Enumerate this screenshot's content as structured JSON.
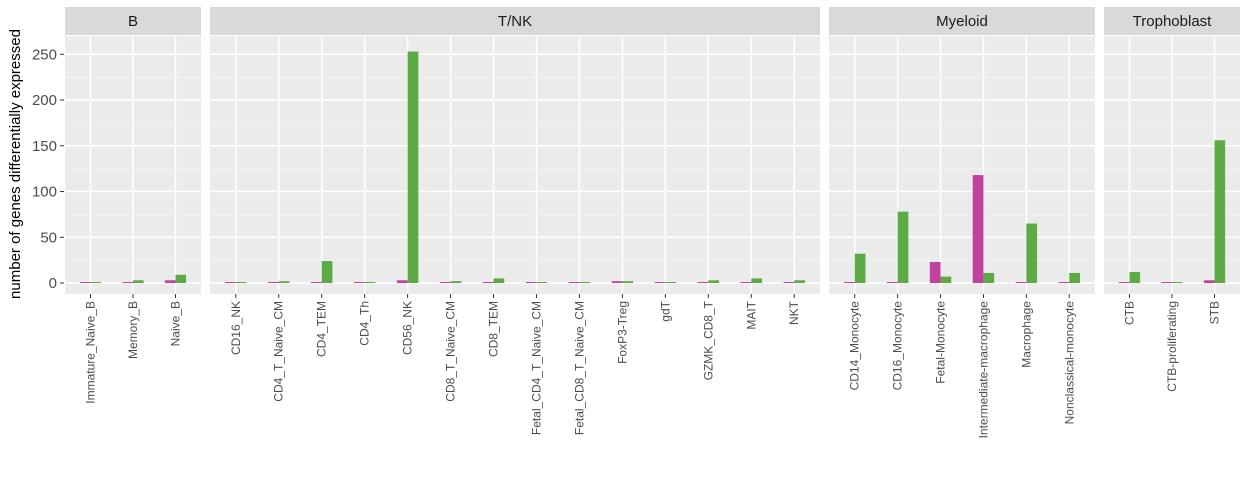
{
  "chart_data": {
    "type": "bar",
    "ylabel": "number of genes differentially expressed",
    "ylim": [
      -12,
      270
    ],
    "yticks": [
      0,
      50,
      100,
      150,
      200,
      250
    ],
    "grid": true,
    "colors": {
      "series_1": "#C2429F",
      "series_2": "#5CAB45",
      "panel_bg": "#EBEBEB",
      "strip_bg": "#D9D9D9",
      "grid": "#FFFFFF"
    },
    "facets": [
      {
        "title": "B",
        "categories": [
          "Immature_Naive_B",
          "Memory_B",
          "Naive_B"
        ],
        "series_1": [
          0,
          0,
          3
        ],
        "series_2": [
          1,
          3,
          9
        ]
      },
      {
        "title": "T/NK",
        "categories": [
          "CD16_NK",
          "CD4_T_Naive_CM",
          "CD4_TEM",
          "CD4_Th",
          "CD56_NK",
          "CD8_T_Naive_CM",
          "CD8_TEM",
          "Fetal_CD4_T_Naive_CM",
          "Fetal_CD8_T_Naive_CM",
          "FoxP3-Treg",
          "gdT",
          "GZMK_CD8_T",
          "MAIT",
          "NKT"
        ],
        "series_1": [
          1,
          0,
          1,
          1,
          3,
          0,
          0,
          1,
          0,
          2,
          0,
          0,
          1,
          1
        ],
        "series_2": [
          1,
          2,
          24,
          1,
          253,
          2,
          5,
          1,
          1,
          2,
          1,
          3,
          5,
          3
        ]
      },
      {
        "title": "Myeloid",
        "categories": [
          "CD14_Monocyte",
          "CD16_Monocyte",
          "Fetal-Monocyte",
          "Intermediate-macrophage",
          "Macrophage",
          "Nonclassical-monocyte"
        ],
        "series_1": [
          1,
          1,
          23,
          118,
          1,
          1
        ],
        "series_2": [
          32,
          78,
          7,
          11,
          65,
          11
        ]
      },
      {
        "title": "Trophoblast",
        "categories": [
          "CTB",
          "CTB-proliferating",
          "STB"
        ],
        "series_1": [
          0,
          1,
          3
        ],
        "series_2": [
          12,
          1,
          156
        ]
      }
    ]
  }
}
